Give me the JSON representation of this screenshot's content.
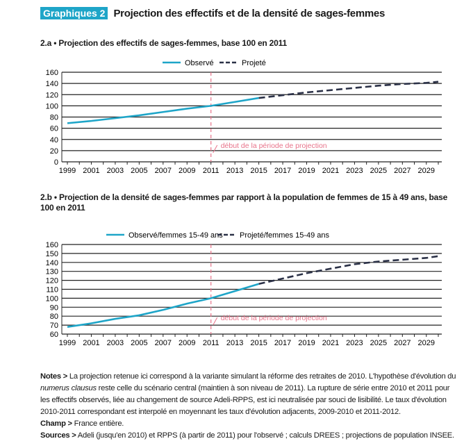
{
  "header": {
    "badge": "Graphiques 2",
    "title": "Projection des effectifs et de la densité de sages-femmes"
  },
  "colors": {
    "observed": "#1ea5c8",
    "projected": "#2b3147",
    "marker": "#e8738a",
    "badge": "#1ea5c8"
  },
  "chart_data": [
    {
      "type": "line",
      "title": "2.a • Projection des effectifs de sages-femmes, base 100 en 2011",
      "ylim": [
        0,
        160
      ],
      "yticks": [
        0,
        20,
        40,
        60,
        80,
        100,
        120,
        140,
        160
      ],
      "xticks": [
        "1999",
        "2001",
        "2003",
        "2005",
        "2007",
        "2009",
        "2011",
        "2013",
        "2015",
        "2017",
        "2019",
        "2021",
        "2023",
        "2025",
        "2027",
        "2029"
      ],
      "xlim": [
        1999,
        2030
      ],
      "legend": "top",
      "grid": "horizontal",
      "annotation": "début de la période de projection",
      "annotation_year": 2011,
      "series": [
        {
          "name": "Observé",
          "style": "solid",
          "x": [
            1999,
            2001,
            2003,
            2005,
            2007,
            2009,
            2011,
            2013,
            2015
          ],
          "y": [
            69,
            73,
            78,
            83,
            89,
            95,
            100,
            107,
            114
          ]
        },
        {
          "name": "Projeté",
          "style": "dashed",
          "x": [
            2015,
            2017,
            2019,
            2021,
            2023,
            2025,
            2027,
            2029,
            2030
          ],
          "y": [
            114,
            119,
            124,
            128,
            132,
            136,
            139,
            141,
            143
          ]
        }
      ]
    },
    {
      "type": "line",
      "title": "2.b • Projection de la densité de sages-femmes par rapport à la population de femmes de 15 à 49 ans, base 100 en 2011",
      "ylim": [
        60,
        160
      ],
      "yticks": [
        60,
        70,
        80,
        90,
        100,
        110,
        120,
        130,
        140,
        150,
        160
      ],
      "xticks": [
        "1999",
        "2001",
        "2003",
        "2005",
        "2007",
        "2009",
        "2011",
        "2013",
        "2015",
        "2017",
        "2019",
        "2021",
        "2023",
        "2025",
        "2027",
        "2029"
      ],
      "xlim": [
        1999,
        2030
      ],
      "legend": "top",
      "grid": "horizontal",
      "annotation": "début de la période de projection",
      "annotation_year": 2011,
      "series": [
        {
          "name": "Observé/femmes 15-49 ans",
          "style": "solid",
          "x": [
            1999,
            2001,
            2003,
            2005,
            2007,
            2009,
            2011,
            2013,
            2015
          ],
          "y": [
            68,
            72,
            77,
            81,
            87,
            94,
            100,
            108,
            116
          ]
        },
        {
          "name": "Projeté/femmes 15-49 ans",
          "style": "dashed",
          "x": [
            2015,
            2017,
            2019,
            2021,
            2023,
            2025,
            2027,
            2029,
            2030
          ],
          "y": [
            116,
            122,
            128,
            133,
            138,
            141,
            143,
            145,
            147
          ]
        }
      ]
    }
  ],
  "notes": {
    "notes_label": "Notes >",
    "notes_text_1": " La projection retenue ici correspond à la variante simulant la réforme des retraites de 2010. L'hypothèse d'évolution du ",
    "notes_italic": "numerus clausus",
    "notes_text_2": " reste celle du scénario central (maintien à son niveau de 2011). La rupture de série entre 2010 et 2011 pour les effectifs observés, liée au changement de source Adeli-RPPS, est ici neutralisée par souci de lisibilité. Le taux d'évolution 2010-2011 correspondant est interpolé en moyennant les taux d'évolution adjacents, 2009-2010 et 2011-2012.",
    "champ_label": "Champ >",
    "champ_text": " France entière.",
    "sources_label": "Sources >",
    "sources_text": " Adeli (jusqu'en 2010) et RPPS (à partir de 2011) pour l'observé ; calculs DREES ; projections de population INSEE."
  }
}
